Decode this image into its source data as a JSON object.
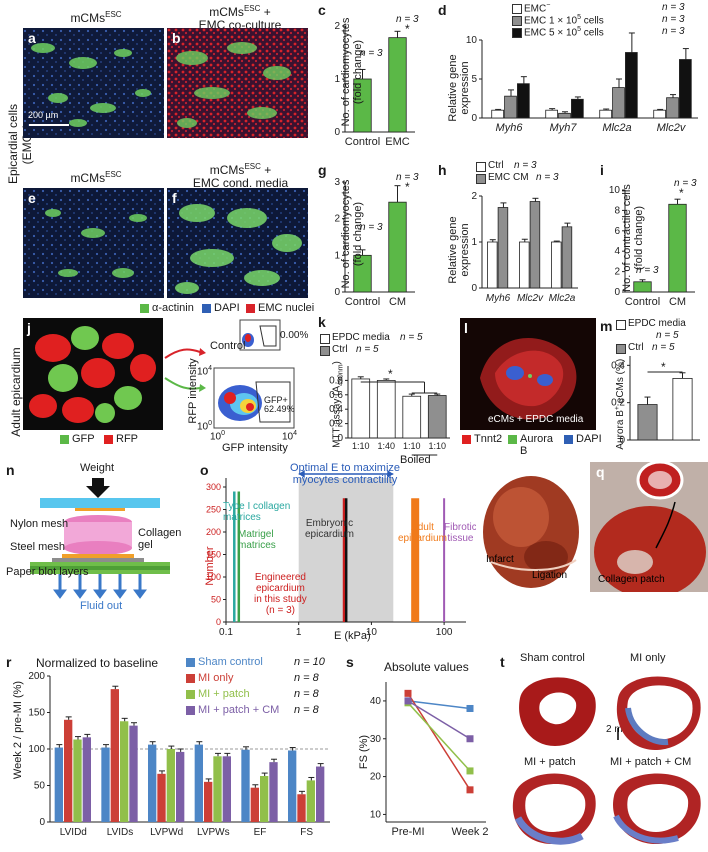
{
  "colors": {
    "green": "#5bb847",
    "gray": "#8f8f8f",
    "black": "#111111",
    "white": "#ffffff",
    "blue_series": "#4d86c6",
    "red_series": "#cc3f37",
    "lime_series": "#91bf4a",
    "purple_series": "#7c5fa6",
    "orange_bar": "#f07a1a",
    "gray_band": "#d4d4d4"
  },
  "row1": {
    "side_label": "Epicardial cells (EMCs)",
    "a": {
      "letter": "a",
      "title": "mCMs",
      "sup": "ESC"
    },
    "b": {
      "letter": "b",
      "title_line1": "mCMs",
      "sup": "ESC",
      "title_plus": " +",
      "title_line2": "EMC co-culture"
    },
    "scale": "200 µm",
    "e": {
      "letter": "e",
      "title": "mCMs",
      "sup": "ESC"
    },
    "f": {
      "letter": "f",
      "title_line1": "mCMs",
      "sup": "ESC",
      "title_plus": " +",
      "title_line2": "EMC cond. media"
    },
    "legend": [
      {
        "label": "α-actinin",
        "color": "#5bb847"
      },
      {
        "label": "DAPI",
        "color": "#2f5fb4"
      },
      {
        "label": "EMC nuclei",
        "color": "#d8232a"
      }
    ]
  },
  "panel_c": {
    "letter": "c",
    "ylabel_1": "No. of cardiomyocytes",
    "ylabel_2": "(fold change)",
    "n1": "n = 3",
    "n2": "n = 3",
    "star": "*"
  },
  "panel_g": {
    "letter": "g",
    "ylabel_1": "No. of cardiomyocytes",
    "ylabel_2": "(fold change)",
    "n1": "n = 3",
    "n2": "n = 3",
    "star": "*"
  },
  "panel_d": {
    "letter": "d",
    "legend": [
      {
        "label": "EMC",
        "sup": "−",
        "n": "n = 3"
      },
      {
        "label": "EMC 1 × 10",
        "sup": "5",
        "tail": " cells",
        "n": "n = 3"
      },
      {
        "label": "EMC 5 × 10",
        "sup": "5",
        "tail": " cells",
        "n": "n = 3"
      }
    ],
    "ylabel_1": "Relative gene",
    "ylabel_2": "expression"
  },
  "panel_h": {
    "letter": "h",
    "legend": [
      {
        "label": "Ctrl",
        "n": "n = 3"
      },
      {
        "label": "EMC CM",
        "n": "n = 3"
      }
    ],
    "ylabel_1": "Relative gene",
    "ylabel_2": "expression"
  },
  "panel_i": {
    "letter": "i",
    "ylabel_1": "No. of contractile cells",
    "ylabel_2": "(fold change)",
    "n1": "n = 3",
    "n2": "n = 3",
    "star": "*"
  },
  "panel_j": {
    "letter": "j",
    "side_label": "Adult epicardium",
    "control": "Control",
    "gfp_pct": "GFP+",
    "gfp_val": "62.49%",
    "zero_pct": "0.00%",
    "ylabel": "RFP intensity",
    "xlabel": "GFP intensity",
    "legend": [
      {
        "label": "GFP",
        "color": "#5bb847"
      },
      {
        "label": "RFP",
        "color": "#e02020"
      }
    ],
    "ticks": {
      "y_top": "10",
      "y_top_sup": "4",
      "y_bot": "10",
      "y_bot_sup": "0",
      "x_left": "10",
      "x_left_sup": "0",
      "x_right": "10",
      "x_right_sup": "4"
    }
  },
  "panel_k": {
    "letter": "k",
    "legend": [
      {
        "label": "EPDC media",
        "n": "n = 5"
      },
      {
        "label": "Ctrl",
        "n": "n = 5"
      }
    ],
    "ylabel_1": "MTT assay (A",
    "ylabel_sub": "490nm",
    "ylabel_2": ")",
    "boiled": "Boiled",
    "star": "*"
  },
  "panel_l": {
    "letter": "l",
    "caption": "eCMs + EPDC media",
    "legend": [
      {
        "label": "Tnnt2",
        "color": "#e02020"
      },
      {
        "label": "Aurora B",
        "color": "#5bb847"
      },
      {
        "label": "DAPI",
        "color": "#2f5fb4"
      }
    ]
  },
  "panel_m": {
    "letter": "m",
    "legend": [
      {
        "label": "EPDC media",
        "n": "n = 5"
      },
      {
        "label": "Ctrl",
        "n": "n = 5"
      }
    ],
    "ylabel_pre": "Aurora B",
    "ylabel_sup": "+",
    "ylabel_post": " eCMs (%)",
    "star": "*"
  },
  "panel_n": {
    "letter": "n",
    "weight": "Weight",
    "nylon": "Nylon mesh",
    "collagen_1": "Collagen",
    "collagen_2": "gel",
    "steel": "Steel mesh",
    "paper": "Paper blot layers",
    "fluid": "Fluid out"
  },
  "panel_o": {
    "letter": "o",
    "top_1": "Optimal E to maximize",
    "top_2": "myocytes contractility",
    "type1_1": "Type I collagen",
    "type1_2": "matrices",
    "matrigel_1": "Matrigel",
    "matrigel_2": "matrices",
    "embryonic_1": "Embryonic",
    "embryonic_2": "epicardium",
    "engineered_1": "Engineered",
    "engineered_2": "epicardium",
    "engineered_3": "in this study",
    "engineered_4": "(n = 3)",
    "adult_1": "Adult",
    "adult_2": "epicardium",
    "fibrotic_1": "Fibrotic",
    "fibrotic_2": "tissue",
    "ylabel": "Number",
    "xlabel": "E (kPa)"
  },
  "panel_p": {
    "letter": "p",
    "infarct": "Infarct",
    "ligation": "Ligation"
  },
  "panel_q": {
    "letter": "q",
    "patch": "Collagen patch"
  },
  "panel_r": {
    "letter": "r",
    "title": "Normalized to baseline",
    "ylabel": "Week 2 / pre-MI (%)",
    "legend": [
      {
        "label": "Sham control",
        "n": "n = 10"
      },
      {
        "label": "MI only",
        "n": "n = 8"
      },
      {
        "label": "MI + patch",
        "n": "n = 8"
      },
      {
        "label": "MI + patch + CM",
        "n": "n = 8"
      }
    ]
  },
  "panel_s": {
    "letter": "s",
    "title": "Absolute values",
    "ylabel": "FS (%)"
  },
  "panel_t": {
    "letter": "t",
    "labels": [
      "Sham control",
      "MI only",
      "MI + patch",
      "MI + patch + CM"
    ],
    "scale": "2 mm"
  },
  "chart_data": [
    {
      "id": "c",
      "type": "bar",
      "categories": [
        "Control",
        "EMC"
      ],
      "values": [
        1.0,
        1.78
      ],
      "errors": [
        0.18,
        0.12
      ],
      "ylim": [
        0,
        2
      ],
      "yticks": [
        0,
        1,
        2
      ],
      "ylabel": "No. of cardiomyocytes (fold change)"
    },
    {
      "id": "d",
      "type": "bar",
      "categories": [
        "Myh6",
        "Myh7",
        "Mlc2a",
        "Mlc2v"
      ],
      "series": [
        {
          "name": "EMC−",
          "values": [
            1.0,
            1.0,
            1.0,
            1.0
          ],
          "errors": [
            0.1,
            0.2,
            0.15,
            0.1
          ]
        },
        {
          "name": "EMC 1 × 10⁵ cells",
          "values": [
            2.8,
            0.6,
            3.9,
            2.6
          ],
          "errors": [
            0.8,
            0.2,
            1.1,
            0.4
          ]
        },
        {
          "name": "EMC 5 × 10⁵ cells",
          "values": [
            4.4,
            2.4,
            8.4,
            7.5
          ],
          "errors": [
            0.9,
            0.3,
            2.5,
            1.4
          ]
        }
      ],
      "ylim": [
        0,
        10
      ],
      "yticks": [
        0,
        5,
        10
      ],
      "ylabel": "Relative gene expression"
    },
    {
      "id": "g",
      "type": "bar",
      "categories": [
        "Control",
        "CM"
      ],
      "values": [
        1.0,
        2.45
      ],
      "errors": [
        0.15,
        0.45
      ],
      "ylim": [
        0,
        3
      ],
      "yticks": [
        0,
        1,
        2,
        3
      ],
      "ylabel": "No. of cardiomyocytes (fold change)"
    },
    {
      "id": "h",
      "type": "bar",
      "categories": [
        "Myh6",
        "Mlc2v",
        "Mlc2a"
      ],
      "series": [
        {
          "name": "Ctrl",
          "values": [
            1.0,
            1.0,
            1.0
          ],
          "errors": [
            0.05,
            0.06,
            0.02
          ]
        },
        {
          "name": "EMC CM",
          "values": [
            1.75,
            1.88,
            1.33
          ],
          "errors": [
            0.1,
            0.07,
            0.08
          ]
        }
      ],
      "ylim": [
        0,
        2
      ],
      "yticks": [
        0,
        1,
        2
      ],
      "ylabel": "Relative gene expression"
    },
    {
      "id": "i",
      "type": "bar",
      "categories": [
        "Control",
        "CM"
      ],
      "values": [
        1.0,
        8.6
      ],
      "errors": [
        0.2,
        0.5
      ],
      "ylim": [
        0,
        10
      ],
      "yticks": [
        0,
        2,
        4,
        6,
        8,
        10
      ],
      "ylabel": "No. of contractile cells (fold change)"
    },
    {
      "id": "k",
      "type": "bar",
      "categories": [
        "1:10",
        "1:40",
        "1:10",
        "1:10"
      ],
      "xgroup_label": "Boiled",
      "values": [
        0.82,
        0.8,
        0.58,
        0.59
      ],
      "errors": [
        0.03,
        0.02,
        0.03,
        0.02
      ],
      "fills": [
        "white",
        "white",
        "white",
        "gray"
      ],
      "ylim": [
        0,
        1.0
      ],
      "yticks": [
        0,
        0.2,
        0.4,
        0.6,
        0.8
      ],
      "ylabel": "MTT assay (A490nm)"
    },
    {
      "id": "m",
      "type": "bar",
      "categories": [
        "Ctrl",
        "EPDC media"
      ],
      "values": [
        0.19,
        0.33
      ],
      "errors": [
        0.04,
        0.03
      ],
      "ylim": [
        0,
        0.45
      ],
      "yticks": [
        0,
        0.2,
        0.4
      ],
      "ylabel": "Aurora B+ eCMs (%)"
    },
    {
      "id": "o",
      "type": "bar",
      "xscale": "log",
      "xlim": [
        0.1,
        200
      ],
      "xticks": [
        0.1,
        1,
        10,
        100
      ],
      "ylim": [
        0,
        320
      ],
      "yticks": [
        0,
        50,
        100,
        150,
        200,
        250,
        300
      ],
      "bars": [
        {
          "name": "Type I collagen matrices",
          "x": 0.13,
          "value": 290,
          "color": "#2aa8a0"
        },
        {
          "name": "Matrigel matrices",
          "x": 0.15,
          "value": 290,
          "color": "#3aa04a"
        },
        {
          "name": "Engineered epicardium",
          "x": 4.2,
          "value": 275,
          "color": "#cc1f1f"
        },
        {
          "name": "Embryonic epicardium",
          "x": 4.5,
          "value": 275,
          "color": "#111111"
        },
        {
          "name": "Adult epicardium",
          "x": 40,
          "value": 275,
          "color": "#f07a1a"
        },
        {
          "name": "Fibrotic tissue",
          "x": 100,
          "value": 275,
          "color": "#a05ab4"
        }
      ],
      "optimal_range": [
        1,
        20
      ],
      "xlabel": "E (kPa)",
      "ylabel": "Number"
    },
    {
      "id": "r",
      "type": "bar",
      "categories": [
        "LVIDd",
        "LVIDs",
        "LVPWd",
        "LVPWs",
        "EF",
        "FS"
      ],
      "series": [
        {
          "name": "Sham control",
          "values": [
            102,
            102,
            106,
            106,
            99,
            98
          ]
        },
        {
          "name": "MI only",
          "values": [
            140,
            182,
            66,
            55,
            47,
            38
          ]
        },
        {
          "name": "MI + patch",
          "values": [
            113,
            138,
            100,
            90,
            63,
            57
          ]
        },
        {
          "name": "MI + patch + CM",
          "values": [
            116,
            132,
            96,
            90,
            82,
            76
          ]
        }
      ],
      "ylim": [
        0,
        200
      ],
      "yticks": [
        0,
        50,
        100,
        150,
        200
      ],
      "ylabel": "Week 2 / pre-MI (%)"
    },
    {
      "id": "s",
      "type": "line",
      "x": [
        "Pre-MI",
        "Week 2"
      ],
      "series": [
        {
          "name": "Sham control",
          "values": [
            40,
            38
          ]
        },
        {
          "name": "MI only",
          "values": [
            42,
            16.5
          ]
        },
        {
          "name": "MI + patch",
          "values": [
            39.5,
            21.5
          ]
        },
        {
          "name": "MI + patch + CM",
          "values": [
            40,
            30
          ]
        }
      ],
      "ylim": [
        8,
        45
      ],
      "yticks": [
        10,
        20,
        30,
        40
      ],
      "ylabel": "FS (%)"
    }
  ]
}
